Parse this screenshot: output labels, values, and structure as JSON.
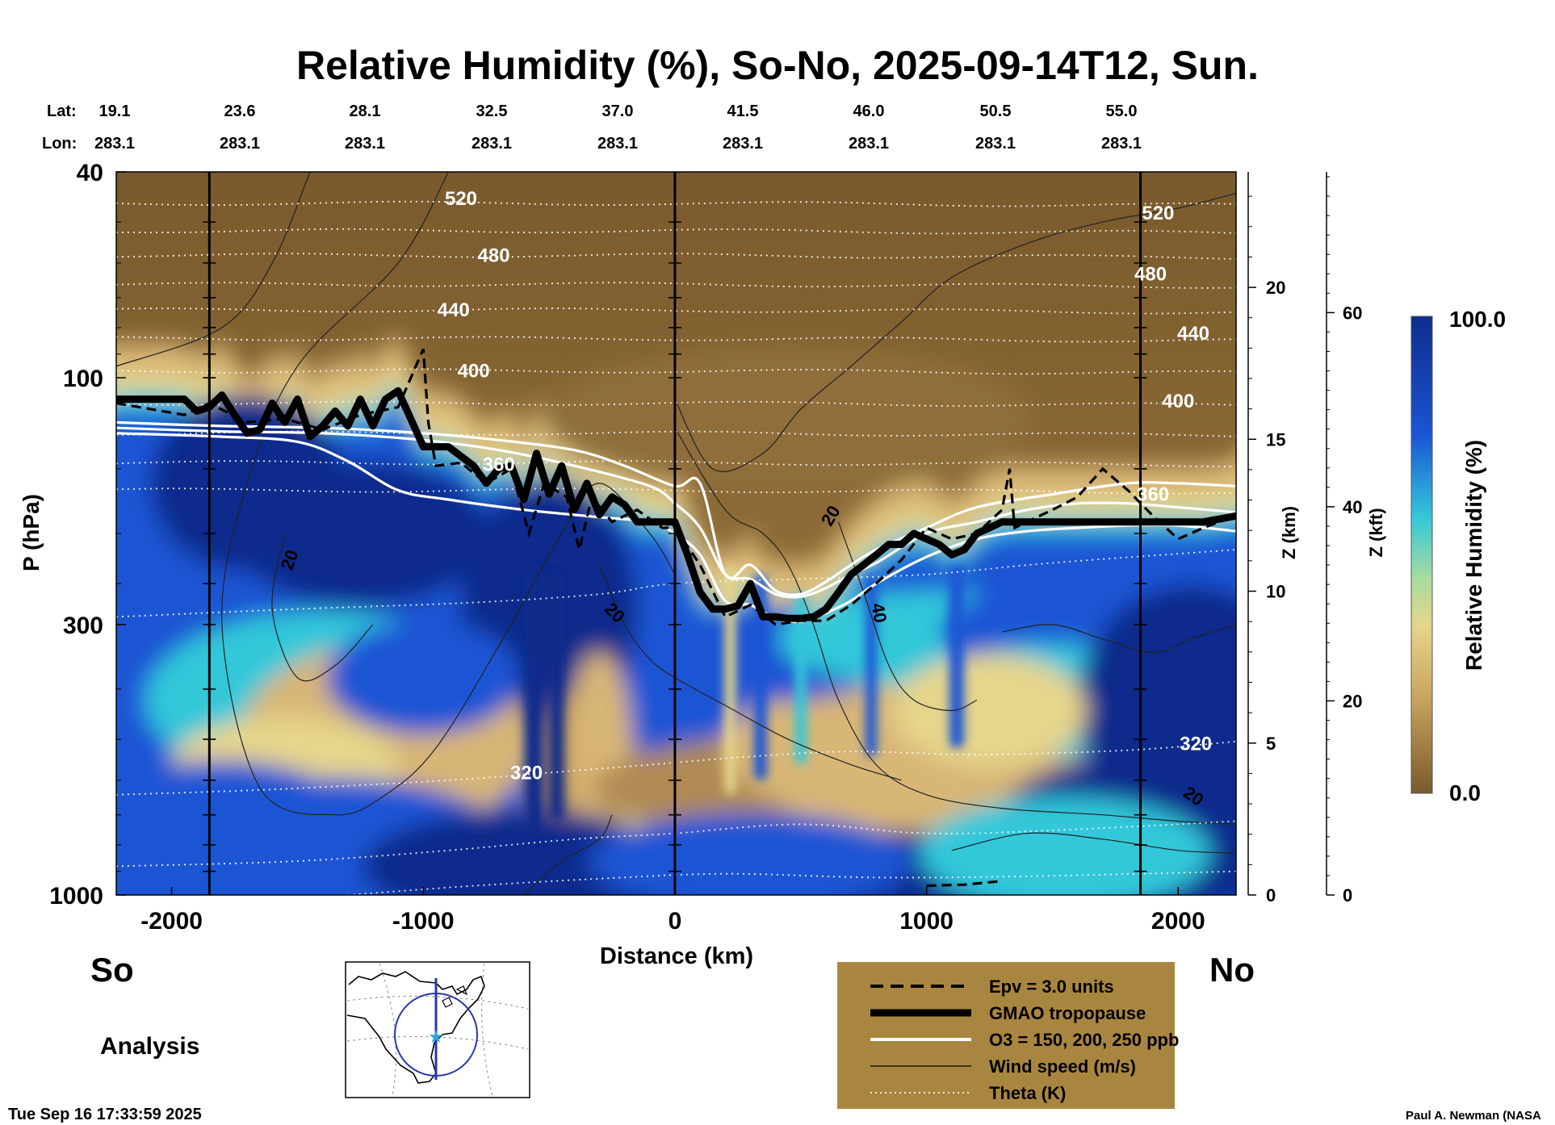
{
  "title": "Relative Humidity (%), So-No, 2025-09-14T12, Sun.",
  "header": {
    "lat_label": "Lat:",
    "lon_label": "Lon:",
    "lats": [
      "19.1",
      "23.6",
      "28.1",
      "32.5",
      "37.0",
      "41.5",
      "46.0",
      "50.5",
      "55.0"
    ],
    "lons": [
      "283.1",
      "283.1",
      "283.1",
      "283.1",
      "283.1",
      "283.1",
      "283.1",
      "283.1",
      "283.1"
    ]
  },
  "end_labels": {
    "left": "So",
    "right": "No"
  },
  "analysis_label": "Analysis",
  "timestamp": "Tue Sep 16 17:33:59 2025",
  "credit": "Paul A. Newman (NASA",
  "colors": {
    "dry": "#7a5a2c",
    "tan": "#b08a52",
    "sand": "#d8b676",
    "yellow": "#e6d58a",
    "cyan": "#33c7d9",
    "blue": "#1b55d4",
    "navy": "#0e2c8c",
    "legend_bg": "#a98640"
  },
  "chart_data": {
    "type": "heatmap",
    "variable": "Relative Humidity (%)",
    "xlabel": "Distance (km)",
    "ylabel": "P (hPa)",
    "xlim": [
      -2220,
      2230
    ],
    "ylim": [
      1000,
      40
    ],
    "y_scale": "log",
    "x_ticks": [
      -2000,
      -1000,
      0,
      1000,
      2000
    ],
    "x_tick_labels": [
      "-2000",
      "-1000",
      "0",
      "1000",
      "2000"
    ],
    "y_ticks": [
      40,
      100,
      300,
      1000
    ],
    "y_tick_labels": [
      "40",
      "100",
      "300",
      "1000"
    ],
    "z_km_axis": {
      "label": "Z (km)",
      "ticks": [
        0,
        5,
        10,
        15,
        20
      ],
      "tick_labels": [
        "0",
        "5",
        "10",
        "15",
        "20"
      ],
      "range": [
        0,
        23.8
      ]
    },
    "z_kft_axis": {
      "label": "Z (kft)",
      "ticks": [
        0,
        20,
        40,
        60
      ],
      "tick_labels": [
        "0",
        "20",
        "40",
        "60"
      ],
      "range": [
        0,
        74.5
      ]
    },
    "colorbar": {
      "label": "Relative Humidity (%)",
      "min_label": "0.0",
      "max_label": "100.0",
      "range": [
        0,
        100
      ]
    },
    "vertical_markers_km": [
      -1850,
      0,
      1850
    ],
    "theta_levels_K": [
      320,
      360,
      400,
      440,
      480,
      520
    ],
    "theta_labels": [
      {
        "text": "520",
        "x": -850,
        "p": 45
      },
      {
        "text": "480",
        "x": -720,
        "p": 58
      },
      {
        "text": "440",
        "x": -880,
        "p": 74
      },
      {
        "text": "400",
        "x": -800,
        "p": 97
      },
      {
        "text": "360",
        "x": -700,
        "p": 147
      },
      {
        "text": "320",
        "x": -590,
        "p": 580
      },
      {
        "text": "520",
        "x": 1920,
        "p": 48
      },
      {
        "text": "480",
        "x": 1890,
        "p": 63
      },
      {
        "text": "440",
        "x": 2060,
        "p": 82
      },
      {
        "text": "400",
        "x": 2000,
        "p": 111
      },
      {
        "text": "360",
        "x": 1900,
        "p": 168
      },
      {
        "text": "320",
        "x": 2070,
        "p": 510
      }
    ],
    "wind_labels": [
      {
        "text": "20",
        "x": -1530,
        "p": 225
      },
      {
        "text": "20",
        "x": -240,
        "p": 285
      },
      {
        "text": "20",
        "x": 620,
        "p": 185
      },
      {
        "text": "40",
        "x": 810,
        "p": 285
      },
      {
        "text": "20",
        "x": 2060,
        "p": 645
      }
    ],
    "tropopause": {
      "x": [
        -2220,
        -1950,
        -1900,
        -1850,
        -1800,
        -1750,
        -1700,
        -1650,
        -1600,
        -1550,
        -1500,
        -1450,
        -1400,
        -1350,
        -1300,
        -1250,
        -1200,
        -1150,
        -1100,
        -1000,
        -900,
        -800,
        -750,
        -700,
        -650,
        -600,
        -550,
        -500,
        -450,
        -400,
        -350,
        -300,
        -250,
        -200,
        -150,
        -100,
        -50,
        0,
        50,
        100,
        150,
        200,
        250,
        300,
        350,
        400,
        450,
        500,
        550,
        600,
        650,
        700,
        750,
        800,
        850,
        900,
        950,
        1000,
        1050,
        1100,
        1150,
        1200,
        1250,
        1300,
        1400,
        1500,
        1600,
        1700,
        1800,
        1900,
        2000,
        2100,
        2230
      ],
      "p": [
        110,
        110,
        116,
        114,
        108,
        118,
        128,
        126,
        112,
        122,
        110,
        130,
        124,
        116,
        124,
        110,
        124,
        110,
        106,
        136,
        136,
        148,
        160,
        150,
        148,
        172,
        140,
        168,
        148,
        180,
        160,
        184,
        170,
        176,
        190,
        190,
        190,
        190,
        220,
        260,
        280,
        280,
        276,
        250,
        290,
        290,
        292,
        292,
        290,
        280,
        260,
        240,
        230,
        220,
        210,
        210,
        200,
        205,
        210,
        220,
        215,
        200,
        195,
        190,
        190,
        190,
        190,
        190,
        190,
        190,
        190,
        190,
        185
      ]
    },
    "ozone_contours_ppb": [
      {
        "level": 150,
        "x": [
          -2220,
          -1800,
          -1400,
          -1000,
          -700,
          -400,
          -100,
          0,
          100,
          200,
          300,
          400,
          500,
          600,
          700,
          800,
          1000,
          1200,
          1400,
          1600,
          1800,
          2000,
          2230
        ],
        "p": [
          125,
          127,
          128,
          132,
          138,
          148,
          162,
          175,
          195,
          240,
          245,
          262,
          265,
          255,
          240,
          228,
          200,
          190,
          180,
          175,
          175,
          178,
          182
        ]
      },
      {
        "level": 200,
        "x": [
          -2220,
          -1800,
          -1500,
          -1300,
          -1100,
          -900,
          -600,
          -300,
          -100,
          0,
          100,
          200,
          300,
          400,
          500,
          600,
          700,
          800,
          1000,
          1200,
          1400,
          1600,
          1800,
          2000,
          2230
        ],
        "p": [
          128,
          130,
          133,
          145,
          165,
          172,
          180,
          186,
          190,
          200,
          220,
          270,
          275,
          292,
          296,
          285,
          270,
          250,
          222,
          205,
          198,
          195,
          193,
          193,
          198
        ]
      },
      {
        "level": 250,
        "x": [
          -2220,
          -1800,
          -1400,
          -1000,
          -700,
          -400,
          -200,
          0,
          100,
          200,
          300,
          400,
          500,
          600,
          700,
          800,
          1000,
          1200,
          1500,
          1800,
          2000,
          2230
        ],
        "p": [
          122,
          124,
          125,
          128,
          132,
          138,
          148,
          162,
          160,
          240,
          230,
          258,
          262,
          248,
          230,
          215,
          195,
          178,
          168,
          160,
          160,
          162
        ]
      }
    ],
    "legend": [
      {
        "label": "Epv = 3.0 units",
        "style": "dashed"
      },
      {
        "label": "GMAO tropopause",
        "style": "thick"
      },
      {
        "label": "O3 = 150, 200, 250 ppb",
        "style": "white"
      },
      {
        "label": "Wind speed (m/s)",
        "style": "thin"
      },
      {
        "label": "Theta (K)",
        "style": "dotted"
      }
    ]
  }
}
